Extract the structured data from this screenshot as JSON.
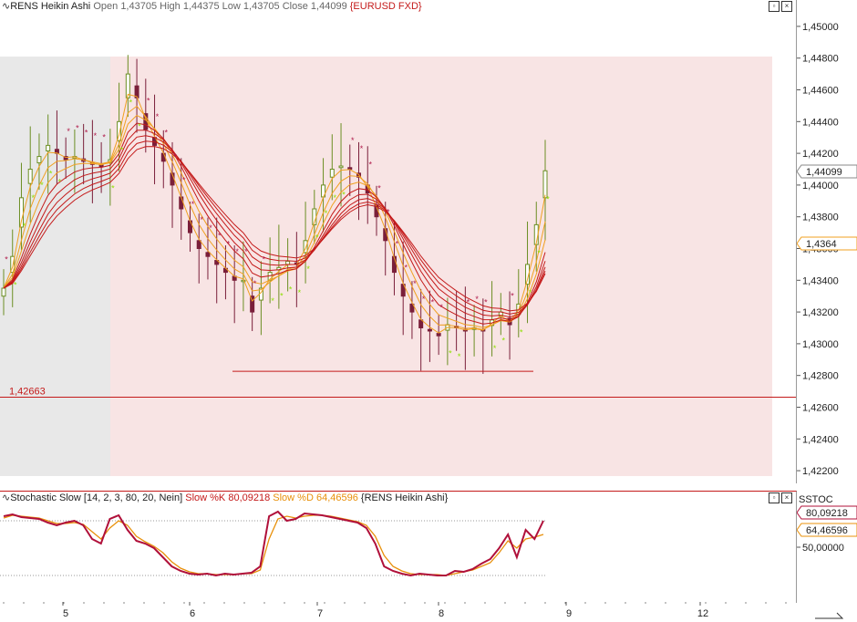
{
  "main_legend": {
    "title": "RENS Heikin Ashi",
    "open_label": "Open",
    "open": "1,43705",
    "high_label": "High",
    "high": "1,44375",
    "low_label": "Low",
    "low": "1,43705",
    "close_label": "Close",
    "close": "1,44099",
    "symbol": "{EURUSD FXD}"
  },
  "stoch_legend": {
    "title": "Stochastic Slow [14, 2, 3, 80, 20, Nein]",
    "k_label": "Slow %K",
    "k_value": "80,09218",
    "d_label": "Slow %D",
    "d_value": "64,46596",
    "source": "{RENS Heikin Ashi}"
  },
  "price_axis": {
    "ticks": [
      "1,45000",
      "1,44800",
      "1,44600",
      "1,44400",
      "1,44200",
      "1,44000",
      "1,43800",
      "1,43600",
      "1,43400",
      "1,43200",
      "1,43000",
      "1,42800",
      "1,42600",
      "1,42400",
      "1,42200"
    ],
    "current_label": "1,44099",
    "second_label": "1,4364"
  },
  "stoch_axis": {
    "header": "SSTOC",
    "k_label": "80,09218",
    "d_label": "64,46596",
    "mid_tick": "50,00000"
  },
  "time_axis": {
    "ticks": [
      "5",
      "6",
      "7",
      "8",
      "9",
      "12"
    ]
  },
  "level_line_label": "1,42663",
  "colors": {
    "bg_shade_gray": "#e8e8e8",
    "bg_shade_pink": "#f8e4e4",
    "bull": "#6b8e23",
    "bear": "#7a1f3a",
    "ma_red": "#c41a1a",
    "ma_orange": "#f0a020",
    "sar_green": "#8ee000",
    "sar_red": "#b01a4a",
    "stoch_k": "#b0103a",
    "stoch_d": "#e8900a"
  },
  "icons": {
    "restore": "restore-icon",
    "close": "close-icon",
    "chart_type": "zigzag-icon"
  },
  "chart_data": {
    "type": "line",
    "title": "RENS Heikin Ashi",
    "ylim": [
      1.4212,
      1.4508
    ],
    "x_labels": [
      "5",
      "6",
      "7",
      "8",
      "9",
      "12"
    ],
    "horizontal_levels": [
      1.42663,
      1.42826
    ],
    "series": [
      {
        "name": "Heikin Ashi close",
        "values": [
          1.4335,
          1.4355,
          1.4392,
          1.441,
          1.4418,
          1.4425,
          1.442,
          1.4416,
          1.4418,
          1.4415,
          1.4413,
          1.4412,
          1.4416,
          1.444,
          1.447,
          1.4455,
          1.4435,
          1.4425,
          1.4415,
          1.44,
          1.4385,
          1.437,
          1.436,
          1.4355,
          1.435,
          1.4345,
          1.434,
          1.434,
          1.432,
          1.4335,
          1.4345,
          1.4348,
          1.4352,
          1.435,
          1.4365,
          1.4385,
          1.44,
          1.441,
          1.4412,
          1.441,
          1.4405,
          1.4395,
          1.438,
          1.4365,
          1.4345,
          1.433,
          1.432,
          1.431,
          1.4308,
          1.4305,
          1.4312,
          1.431,
          1.4308,
          1.431,
          1.4308,
          1.4315,
          1.432,
          1.4312,
          1.4325,
          1.435,
          1.4375,
          1.4409
        ]
      },
      {
        "name": "Slow %K",
        "values": [
          85,
          87,
          84,
          83,
          82,
          78,
          75,
          78,
          80,
          75,
          60,
          55,
          82,
          86,
          70,
          58,
          55,
          50,
          40,
          30,
          25,
          22,
          21,
          22,
          20,
          22,
          21,
          22,
          23,
          30,
          85,
          90,
          80,
          82,
          88,
          87,
          86,
          84,
          82,
          80,
          78,
          72,
          55,
          30,
          25,
          22,
          20,
          22,
          21,
          20,
          20,
          25,
          24,
          27,
          33,
          38,
          50,
          65,
          40,
          70,
          60,
          80
        ]
      },
      {
        "name": "Slow %D",
        "values": [
          83,
          86,
          85,
          84,
          83,
          80,
          77,
          77,
          78,
          76,
          68,
          60,
          72,
          80,
          75,
          63,
          57,
          52,
          45,
          35,
          28,
          24,
          22,
          22,
          21,
          21,
          21,
          22,
          22,
          26,
          60,
          82,
          85,
          83,
          85,
          86,
          86,
          85,
          83,
          81,
          79,
          75,
          63,
          42,
          30,
          25,
          22,
          21,
          21,
          21,
          20,
          22,
          24,
          26,
          30,
          34,
          45,
          58,
          50,
          60,
          62,
          65
        ]
      }
    ],
    "stoch_levels": [
      80,
      20
    ]
  }
}
